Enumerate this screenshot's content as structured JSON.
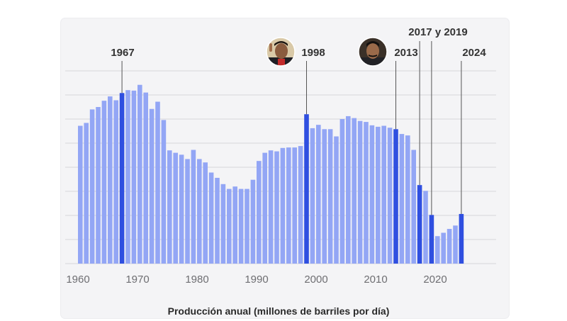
{
  "chart_data": {
    "type": "bar",
    "title": "",
    "xlabel": "Producción anual (millones de barriles por día)",
    "ylabel": "",
    "years": [
      1960,
      1961,
      1962,
      1963,
      1964,
      1965,
      1966,
      1967,
      1968,
      1969,
      1970,
      1971,
      1972,
      1973,
      1974,
      1975,
      1976,
      1977,
      1978,
      1979,
      1980,
      1981,
      1982,
      1983,
      1984,
      1985,
      1986,
      1987,
      1988,
      1989,
      1990,
      1991,
      1992,
      1993,
      1994,
      1995,
      1996,
      1997,
      1998,
      1999,
      2000,
      2001,
      2002,
      2003,
      2004,
      2005,
      2006,
      2007,
      2008,
      2009,
      2010,
      2011,
      2012,
      2013,
      2014,
      2015,
      2016,
      2017,
      2018,
      2019,
      2020,
      2021,
      2022,
      2023,
      2024
    ],
    "values": [
      2.86,
      2.92,
      3.2,
      3.25,
      3.38,
      3.47,
      3.39,
      3.54,
      3.6,
      3.59,
      3.71,
      3.55,
      3.21,
      3.36,
      2.98,
      2.35,
      2.3,
      2.26,
      2.17,
      2.36,
      2.17,
      2.1,
      1.89,
      1.78,
      1.65,
      1.55,
      1.6,
      1.55,
      1.55,
      1.74,
      2.13,
      2.3,
      2.35,
      2.33,
      2.4,
      2.41,
      2.41,
      2.44,
      3.1,
      2.81,
      2.88,
      2.79,
      2.79,
      2.64,
      3.0,
      3.06,
      3.02,
      2.96,
      2.94,
      2.87,
      2.84,
      2.86,
      2.82,
      2.79,
      2.69,
      2.66,
      2.36,
      1.63,
      1.51,
      1.01,
      0.57,
      0.64,
      0.72,
      0.79,
      1.03
    ],
    "highlighted_years": [
      1967,
      1998,
      2013,
      2017,
      2019,
      2024
    ],
    "xticks": [
      1960,
      1970,
      1980,
      1990,
      2000,
      2010,
      2020
    ],
    "ylim": [
      0,
      4
    ],
    "grid": true,
    "colors": {
      "bar": "#93a6f5",
      "highlight": "#2f4fe0",
      "grid": "#d6d6da",
      "leader": "#555555"
    },
    "annotations": [
      {
        "label": "1967",
        "years": [
          1967
        ],
        "portrait": ""
      },
      {
        "label": "1998",
        "years": [
          1998
        ],
        "portrait": "chavez-portrait"
      },
      {
        "label": "2013",
        "years": [
          2013
        ],
        "portrait": "maduro-portrait"
      },
      {
        "label": "2017 y 2019",
        "years": [
          2017,
          2019
        ],
        "portrait": ""
      },
      {
        "label": "2024",
        "years": [
          2024
        ],
        "portrait": ""
      }
    ]
  }
}
